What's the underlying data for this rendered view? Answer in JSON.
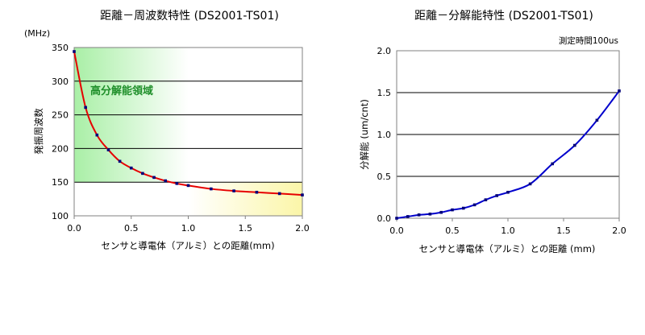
{
  "chart_data": [
    {
      "type": "line",
      "title": "距離－周波数特性 (DS2001-TS01)",
      "xlabel": "センサと導電体（アルミ）との距離(mm)",
      "ylabel": "発振周波数",
      "yunit": "(MHz)",
      "annotation": "高分解能領域",
      "xlim": [
        0,
        2.0
      ],
      "ylim": [
        100,
        350
      ],
      "xticks": [
        "0.0",
        "0.5",
        "1.0",
        "1.5",
        "2.0"
      ],
      "yticks": [
        "100",
        "150",
        "200",
        "250",
        "300",
        "350"
      ],
      "grid": true,
      "series": [
        {
          "color": "#e60000",
          "marker_color": "#00007a",
          "x": [
            0.0,
            0.1,
            0.2,
            0.3,
            0.4,
            0.5,
            0.6,
            0.7,
            0.8,
            0.9,
            1.0,
            1.2,
            1.4,
            1.6,
            1.8,
            2.0
          ],
          "values": [
            344,
            261,
            220,
            198,
            181,
            171,
            163,
            157,
            152,
            148,
            145,
            140,
            137,
            135,
            133,
            131
          ]
        }
      ]
    },
    {
      "type": "line",
      "title": "距離－分解能特性 (DS2001-TS01)",
      "xlabel": "センサと導電体（アルミ）との距離 (mm)",
      "ylabel": "分解能 (um/cnt)",
      "annotation": "測定時間100us",
      "xlim": [
        0,
        2.0
      ],
      "ylim": [
        0,
        2.0
      ],
      "xticks": [
        "0.0",
        "0.5",
        "1.0",
        "1.5",
        "2.0"
      ],
      "yticks": [
        "0.0",
        "0.5",
        "1.0",
        "1.5",
        "2.0"
      ],
      "grid": true,
      "series": [
        {
          "color": "#0000cc",
          "marker_color": "#00007a",
          "x": [
            0.0,
            0.1,
            0.2,
            0.3,
            0.4,
            0.5,
            0.6,
            0.7,
            0.8,
            0.9,
            1.0,
            1.2,
            1.4,
            1.6,
            1.8,
            2.0
          ],
          "values": [
            0.0,
            0.02,
            0.04,
            0.05,
            0.07,
            0.1,
            0.12,
            0.16,
            0.22,
            0.27,
            0.31,
            0.41,
            0.65,
            0.87,
            1.17,
            1.52
          ]
        }
      ]
    }
  ]
}
